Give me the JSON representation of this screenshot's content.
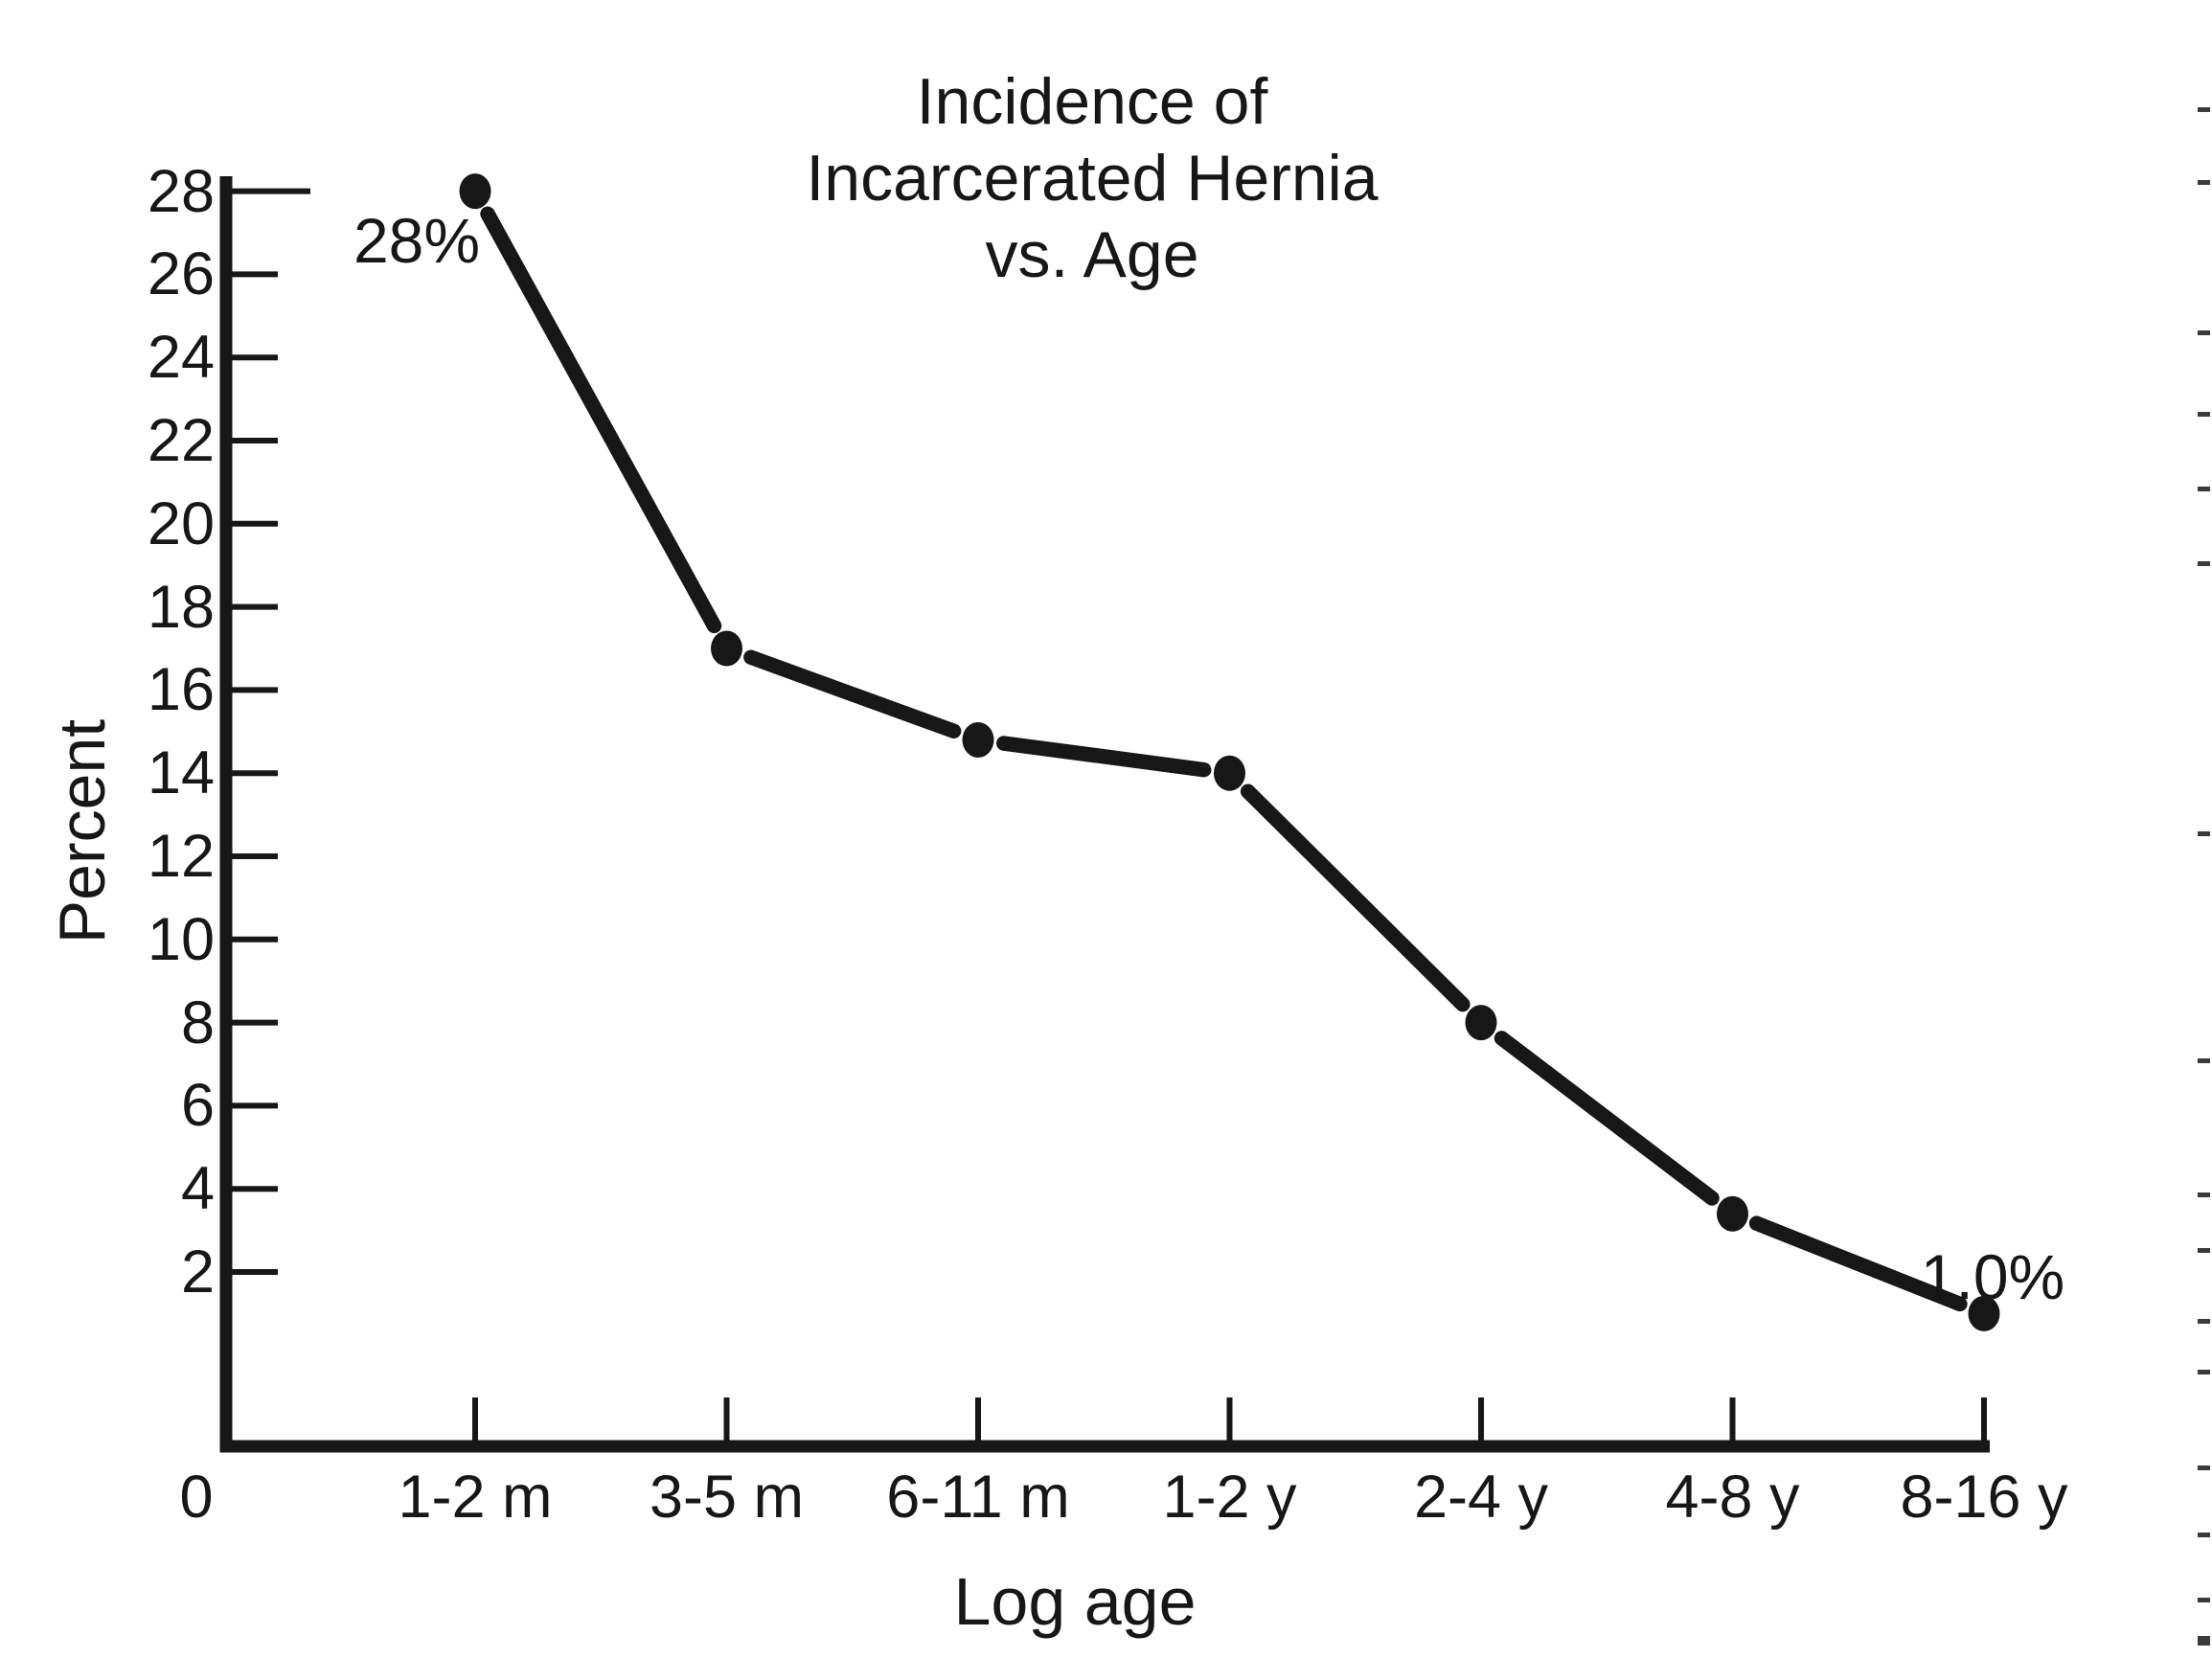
{
  "figure": {
    "background": "#ffffff",
    "ink": "#171717"
  },
  "title": {
    "lines": [
      "Incidence of",
      "Incarcerated Hernia",
      "vs. Age"
    ]
  },
  "chart_data": {
    "type": "line",
    "title": "Incidence of Incarcerated Hernia vs. Age",
    "categories": [
      "1-2 m",
      "3-5 m",
      "6-11 m",
      "1-2 y",
      "2-4 y",
      "4-8 y",
      "8-16 y"
    ],
    "values": [
      28,
      17,
      14.8,
      14,
      8,
      3.4,
      1.0
    ],
    "point_labels": [
      "28%",
      null,
      null,
      null,
      null,
      null,
      "1.0%"
    ],
    "xlabel": "Log age",
    "ylabel": "Percent",
    "x_origin_label": "0",
    "y_ticks": [
      2,
      4,
      6,
      8,
      10,
      12,
      14,
      16,
      18,
      20,
      22,
      24,
      26,
      28
    ],
    "ylim": [
      0,
      28
    ],
    "y_tick_step": 2,
    "grid": false,
    "legend": "none",
    "marker": "filled-circle",
    "line_color": "#171717",
    "marker_color": "#171717"
  },
  "decoration": {
    "edge_artifact_y": [
      112,
      188,
      345,
      430,
      508,
      586,
      868,
      1105,
      1245,
      1303,
      1377,
      1430,
      1530,
      1600,
      1668,
      1708
    ]
  }
}
